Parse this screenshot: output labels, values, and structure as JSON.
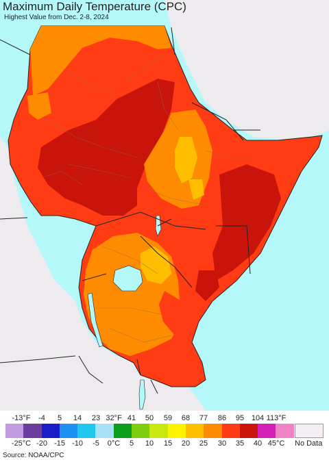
{
  "title": "Maximum Daily Temperature (CPC)",
  "subtitle": "Highest Value from Dec. 2-8, 2024",
  "source": "Source: NOAA/CPC",
  "legend": {
    "fahrenheit_ticks": [
      "-13°F",
      "-4",
      "5",
      "14",
      "23",
      "32°F",
      "41",
      "50",
      "59",
      "68",
      "77",
      "86",
      "95",
      "104",
      "113°F"
    ],
    "celsius_ticks": [
      "-25°C",
      "-20",
      "-15",
      "-10",
      "-5",
      "0°C",
      "5",
      "10",
      "15",
      "20",
      "25",
      "30",
      "35",
      "40",
      "45°C"
    ],
    "colors": [
      "#c39be0",
      "#6a3d9e",
      "#1a1ec8",
      "#1e90f0",
      "#20c8f0",
      "#a8e0f8",
      "#0e9e1e",
      "#7ece10",
      "#c8e810",
      "#fff200",
      "#ffbe00",
      "#ff8c00",
      "#ff3c14",
      "#c8140a",
      "#d21eb4",
      "#f082c8"
    ],
    "no_data_label": "No Data",
    "no_data_color": "#f2eef2"
  },
  "colors": {
    "ocean": "#b4f8fa",
    "land_outside": "#eeebee",
    "border": "#222222",
    "admin_border": "#8a6a4a"
  }
}
